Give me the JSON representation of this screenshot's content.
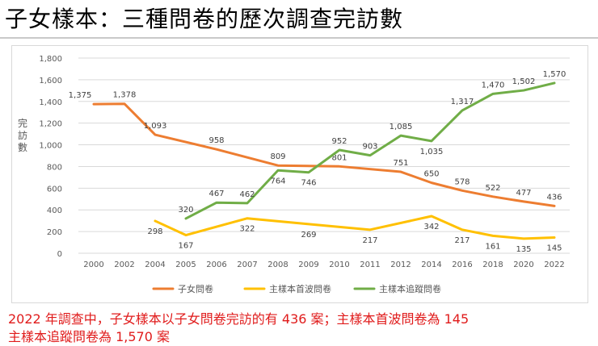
{
  "page": {
    "title": "子女樣本：三種問卷的歷次調查完訪數",
    "caption_line1": "2022 年調查中，子女樣本以子女問卷完訪的有 436 案；主樣本首波問卷為 145",
    "caption_line2": "主樣本追蹤問卷為 1,570 案"
  },
  "chart_data": {
    "type": "line",
    "title": "",
    "xlabel": "",
    "ylabel": "完訪數",
    "ylim": [
      0,
      1800
    ],
    "yticks": [
      0,
      200,
      400,
      600,
      800,
      1000,
      1200,
      1400,
      1600,
      1800
    ],
    "ytick_labels": [
      "0",
      "200",
      "400",
      "600",
      "800",
      "1,000",
      "1,200",
      "1,400",
      "1,600",
      "1,800"
    ],
    "categories": [
      "2000",
      "2002",
      "2004",
      "2005",
      "2006",
      "2007",
      "2008",
      "2009",
      "2010",
      "2011",
      "2012",
      "2014",
      "2016",
      "2018",
      "2020",
      "2022"
    ],
    "grid": true,
    "legend_position": "bottom",
    "series": [
      {
        "name": "子女問卷",
        "color": "#ED7D31",
        "values": [
          1375,
          1378,
          1093,
          null,
          958,
          null,
          809,
          null,
          801,
          null,
          751,
          650,
          578,
          522,
          477,
          436
        ],
        "labels": [
          "1,375",
          "1,378",
          "1,093",
          "",
          "958",
          "",
          "809",
          "",
          "801",
          "",
          "751",
          "650",
          "578",
          "522",
          "477",
          "436"
        ],
        "label_pos": [
          "above",
          "above",
          "above",
          "",
          "above",
          "",
          "above",
          "",
          "above",
          "",
          "above",
          "above",
          "above",
          "above",
          "above",
          "above"
        ]
      },
      {
        "name": "主樣本首波問卷",
        "color": "#FFC000",
        "values": [
          null,
          null,
          298,
          167,
          null,
          322,
          null,
          269,
          null,
          217,
          null,
          342,
          217,
          161,
          135,
          145
        ],
        "labels": [
          "",
          "",
          "298",
          "167",
          "",
          "322",
          "",
          "269",
          "",
          "217",
          "",
          "342",
          "217",
          "161",
          "135",
          "145"
        ],
        "label_pos": [
          "",
          "",
          "below",
          "below",
          "",
          "below",
          "",
          "below",
          "",
          "below",
          "",
          "below",
          "below",
          "below",
          "below",
          "below"
        ]
      },
      {
        "name": "主樣本追蹤問卷",
        "color": "#70AD47",
        "values": [
          null,
          null,
          null,
          320,
          467,
          462,
          764,
          746,
          952,
          903,
          1085,
          1035,
          1317,
          1470,
          1502,
          1570
        ],
        "labels": [
          "",
          "",
          "",
          "320",
          "467",
          "462",
          "764",
          "746",
          "952",
          "903",
          "1,085",
          "1,035",
          "1,317",
          "1,470",
          "1,502",
          "1,570"
        ],
        "label_pos": [
          "",
          "",
          "",
          "above",
          "above",
          "above",
          "below",
          "below",
          "above",
          "above",
          "above",
          "below",
          "above",
          "above",
          "above",
          "above"
        ]
      }
    ]
  }
}
